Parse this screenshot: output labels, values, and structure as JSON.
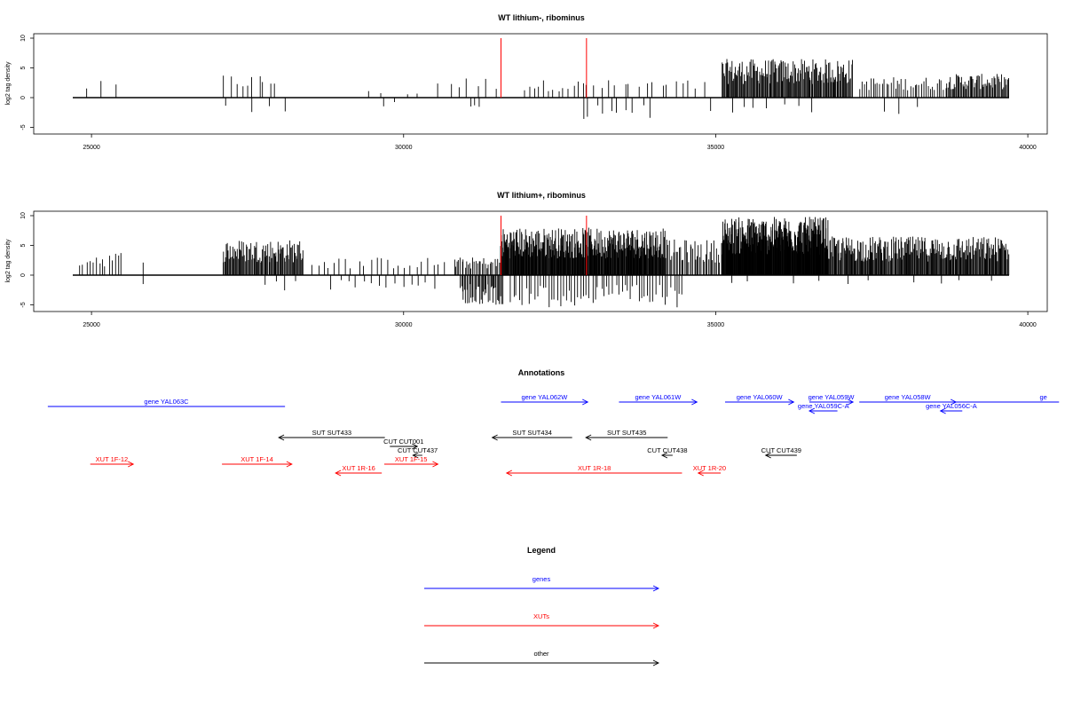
{
  "window": {
    "width_label": ""
  },
  "chart_data": [
    {
      "type": "bar",
      "title": "WT lithium-, ribominus",
      "ylabel": "log2 tag density",
      "xlim": [
        24700,
        39700
      ],
      "ylim": [
        -6,
        10
      ],
      "xticks": [
        25000,
        30000,
        35000,
        40000
      ],
      "yticks": [
        -5,
        0,
        5,
        10
      ],
      "red_markers_x": [
        31560,
        32930
      ],
      "positive_regions": [
        {
          "start": 24800,
          "end": 25500,
          "count": 3,
          "max": 2.8
        },
        {
          "start": 27100,
          "end": 28000,
          "count": 10,
          "max": 4.0
        },
        {
          "start": 29200,
          "end": 30500,
          "count": 4,
          "max": 1.2
        },
        {
          "start": 30500,
          "end": 31550,
          "count": 7,
          "max": 3.5
        },
        {
          "start": 31900,
          "end": 33000,
          "count": 14,
          "max": 3.0
        },
        {
          "start": 33000,
          "end": 34900,
          "count": 16,
          "max": 3.0
        },
        {
          "start": 35100,
          "end": 37200,
          "count": 150,
          "max": 6.5
        },
        {
          "start": 37300,
          "end": 38700,
          "count": 40,
          "max": 3.5
        },
        {
          "start": 38700,
          "end": 39700,
          "count": 60,
          "max": 4.0
        }
      ],
      "negative_regions": [
        {
          "start": 27100,
          "end": 28300,
          "count": 4,
          "min": -2.5
        },
        {
          "start": 29500,
          "end": 30000,
          "count": 2,
          "min": -1.8
        },
        {
          "start": 31000,
          "end": 31300,
          "count": 3,
          "min": -2.0
        },
        {
          "start": 32800,
          "end": 34000,
          "count": 10,
          "min": -3.8
        },
        {
          "start": 34900,
          "end": 36600,
          "count": 8,
          "min": -3.0
        },
        {
          "start": 37600,
          "end": 38300,
          "count": 3,
          "min": -2.8
        }
      ]
    },
    {
      "type": "bar",
      "title": "WT lithium+, ribominus",
      "ylabel": "log2 tag density",
      "xlim": [
        24700,
        39700
      ],
      "ylim": [
        -6,
        10
      ],
      "xticks": [
        25000,
        30000,
        35000,
        40000
      ],
      "yticks": [
        -5,
        0,
        5,
        10
      ],
      "red_markers_x": [
        31560,
        32930
      ],
      "positive_regions": [
        {
          "start": 24800,
          "end": 25500,
          "count": 14,
          "max": 4.0
        },
        {
          "start": 25800,
          "end": 25850,
          "count": 1,
          "max": 2.5
        },
        {
          "start": 27100,
          "end": 28400,
          "count": 90,
          "max": 6.0
        },
        {
          "start": 28500,
          "end": 30700,
          "count": 24,
          "max": 3.0
        },
        {
          "start": 30800,
          "end": 31550,
          "count": 30,
          "max": 3.0
        },
        {
          "start": 31550,
          "end": 34200,
          "count": 300,
          "max": 8.0
        },
        {
          "start": 34200,
          "end": 35100,
          "count": 40,
          "max": 6.0
        },
        {
          "start": 35100,
          "end": 36800,
          "count": 250,
          "max": 9.8
        },
        {
          "start": 36800,
          "end": 39700,
          "count": 240,
          "max": 6.5
        }
      ],
      "negative_regions": [
        {
          "start": 25800,
          "end": 25850,
          "count": 1,
          "min": -1.8
        },
        {
          "start": 27700,
          "end": 28300,
          "count": 4,
          "min": -3.0
        },
        {
          "start": 28800,
          "end": 30600,
          "count": 14,
          "min": -2.5
        },
        {
          "start": 30900,
          "end": 31600,
          "count": 40,
          "min": -5.0
        },
        {
          "start": 31700,
          "end": 34500,
          "count": 60,
          "min": -5.5
        },
        {
          "start": 35000,
          "end": 39700,
          "count": 10,
          "min": -1.5
        }
      ]
    }
  ],
  "annotations": {
    "title": "Annotations",
    "items": [
      {
        "label": "gene YAL063C",
        "start": 24300,
        "end": 28100,
        "dir": "none",
        "color": "#0000ff",
        "row": 0.5
      },
      {
        "label": "gene YAL062W",
        "start": 31560,
        "end": 32950,
        "dir": "right",
        "color": "#0000ff",
        "row": 0
      },
      {
        "label": "gene YAL061W",
        "start": 33450,
        "end": 34700,
        "dir": "right",
        "color": "#0000ff",
        "row": 0
      },
      {
        "label": "gene YAL060W",
        "start": 35150,
        "end": 36250,
        "dir": "right",
        "color": "#0000ff",
        "row": 0
      },
      {
        "label": "gene YAL059W",
        "start": 36500,
        "end": 37200,
        "dir": "right",
        "color": "#0000ff",
        "row": 0
      },
      {
        "label": "gene YAL059C-A",
        "start": 36500,
        "end": 36950,
        "dir": "left",
        "color": "#0000ff",
        "row": 1
      },
      {
        "label": "gene YAL058W",
        "start": 37300,
        "end": 38850,
        "dir": "right",
        "color": "#0000ff",
        "row": 0
      },
      {
        "label": "gene YAL056C-A",
        "start": 38600,
        "end": 38950,
        "dir": "left",
        "color": "#0000ff",
        "row": 1
      },
      {
        "label": "ge",
        "start": 38800,
        "end": 40500,
        "dir": "none",
        "color": "#0000ff",
        "row": 0,
        "label_x": 40250
      },
      {
        "label": "SUT SUT433",
        "start": 28000,
        "end": 29700,
        "dir": "left",
        "color": "#000000",
        "row": 4
      },
      {
        "label": "CUT CUT001",
        "start": 29780,
        "end": 30220,
        "dir": "right",
        "color": "#000000",
        "row": 5
      },
      {
        "label": "CUT CUT437",
        "start": 30150,
        "end": 30300,
        "dir": "left",
        "color": "#000000",
        "row": 6
      },
      {
        "label": "SUT SUT434",
        "start": 31420,
        "end": 32700,
        "dir": "left",
        "color": "#000000",
        "row": 4
      },
      {
        "label": "SUT SUT435",
        "start": 32920,
        "end": 34230,
        "dir": "left",
        "color": "#000000",
        "row": 4
      },
      {
        "label": "CUT CUT438",
        "start": 34140,
        "end": 34310,
        "dir": "left",
        "color": "#000000",
        "row": 6
      },
      {
        "label": "CUT CUT439",
        "start": 35800,
        "end": 36300,
        "dir": "left",
        "color": "#000000",
        "row": 6
      },
      {
        "label": "XUT 1F-12",
        "start": 24980,
        "end": 25670,
        "dir": "right",
        "color": "#ff0000",
        "row": 7
      },
      {
        "label": "XUT 1F-14",
        "start": 27090,
        "end": 28210,
        "dir": "right",
        "color": "#ff0000",
        "row": 7
      },
      {
        "label": "XUT 1R-16",
        "start": 28910,
        "end": 29650,
        "dir": "left",
        "color": "#ff0000",
        "row": 8
      },
      {
        "label": "XUT 1F-15",
        "start": 29690,
        "end": 30550,
        "dir": "right",
        "color": "#ff0000",
        "row": 7
      },
      {
        "label": "XUT 1R-18",
        "start": 31650,
        "end": 34460,
        "dir": "left",
        "color": "#ff0000",
        "row": 8
      },
      {
        "label": "XUT 1R-20",
        "start": 34720,
        "end": 35080,
        "dir": "left",
        "color": "#ff0000",
        "row": 8
      }
    ]
  },
  "legend": {
    "title": "Legend",
    "items": [
      {
        "label": "genes",
        "color": "#0000ff"
      },
      {
        "label": "XUTs",
        "color": "#ff0000"
      },
      {
        "label": "other",
        "color": "#000000"
      }
    ]
  }
}
